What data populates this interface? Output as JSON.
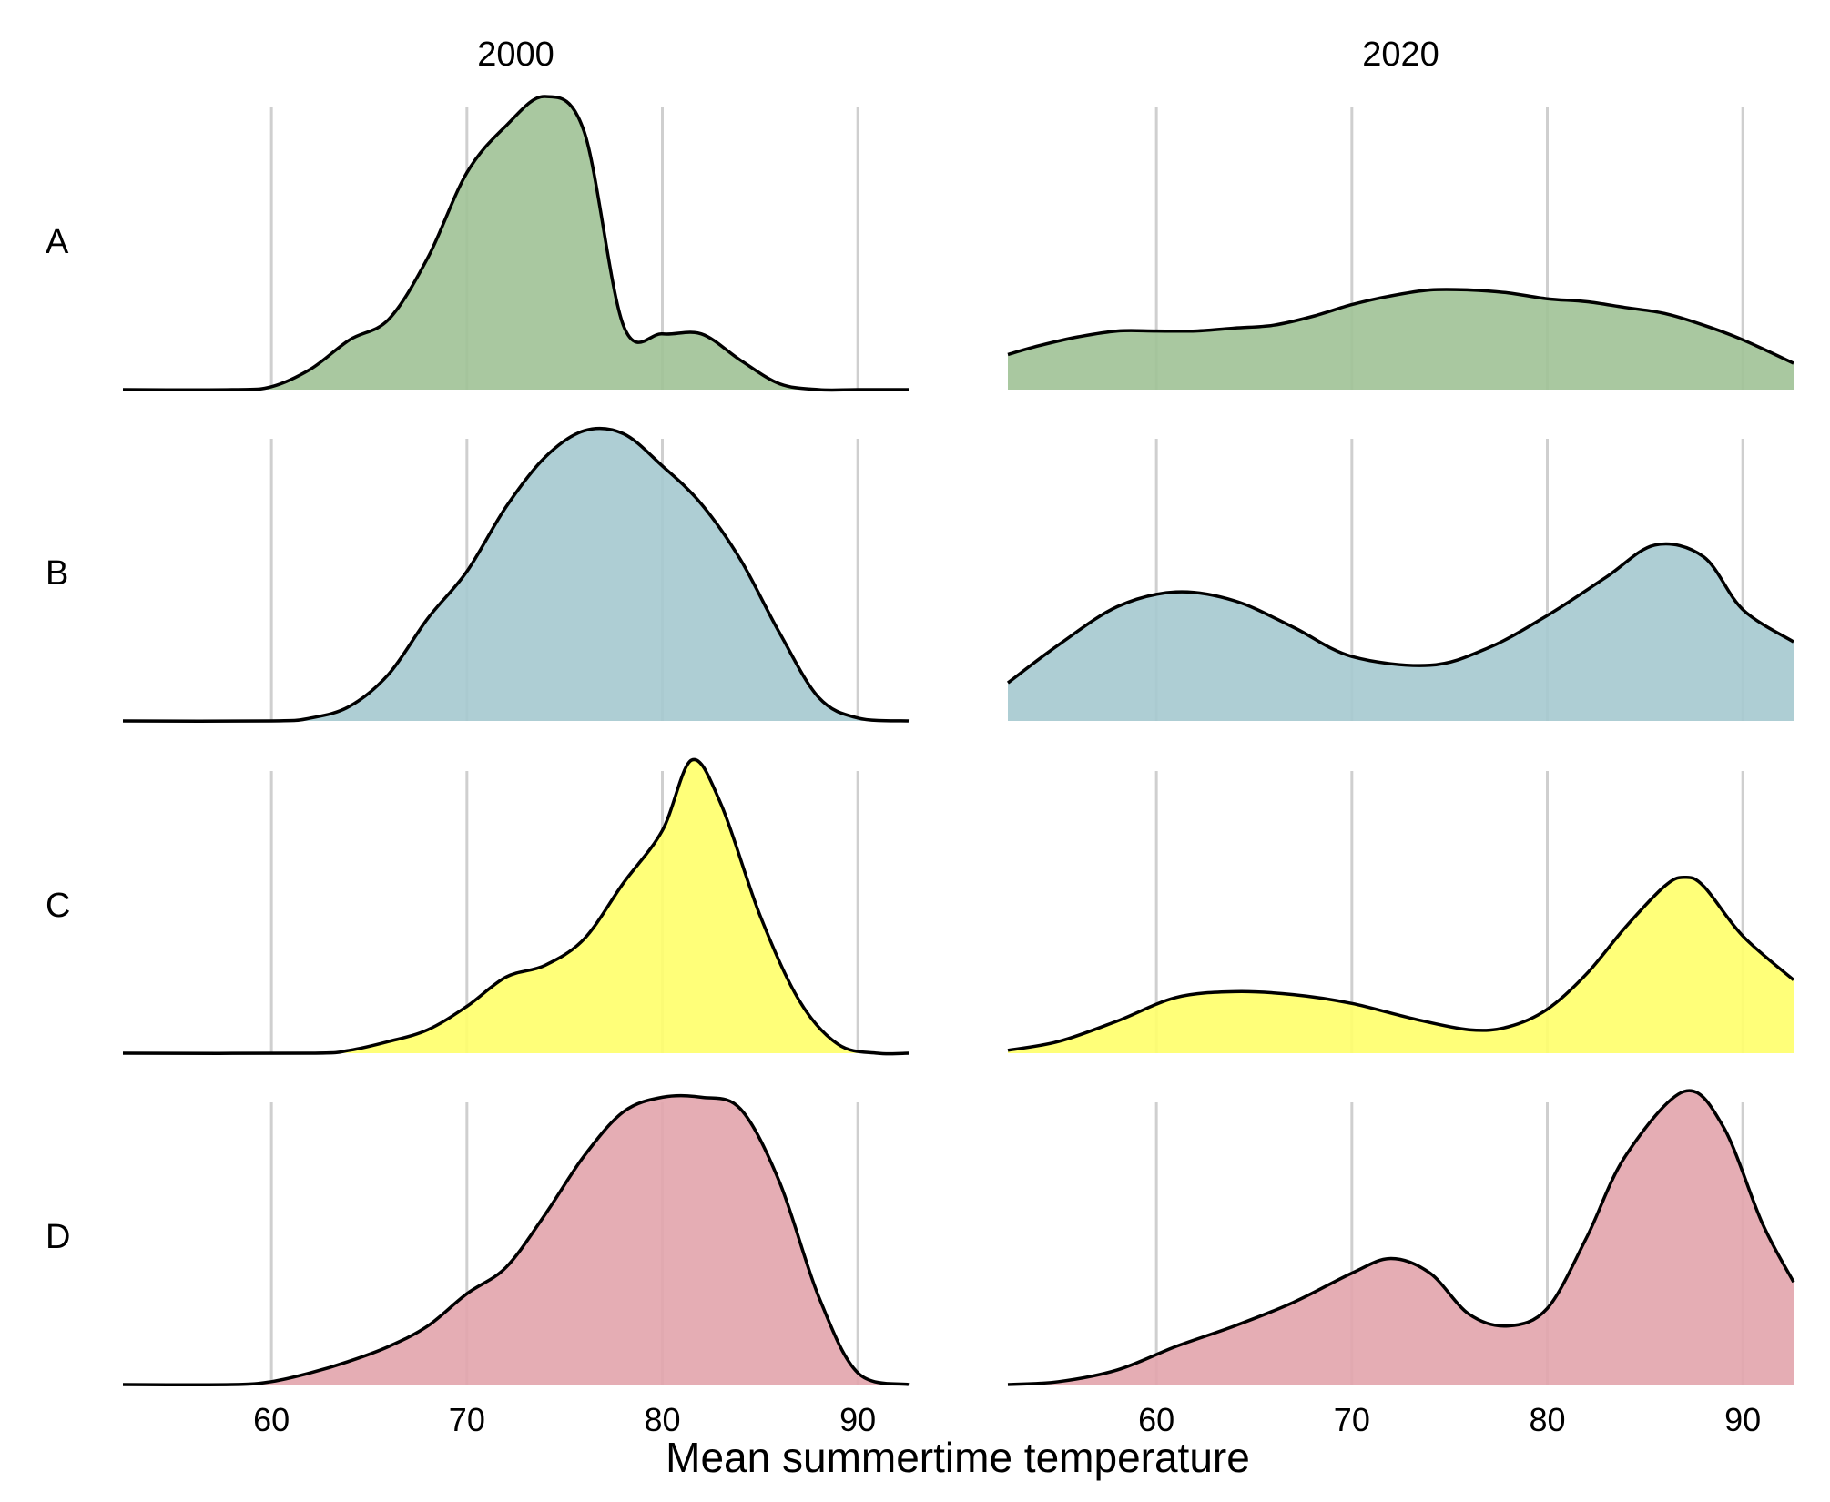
{
  "chart_data": {
    "type": "area",
    "xlabel": "Mean summertime temperature",
    "ylabel": "",
    "xticks": [
      60,
      70,
      80,
      90
    ],
    "xlim": [
      52.4,
      92.6
    ],
    "grid": "vertical",
    "columns": [
      {
        "title": "2000"
      },
      {
        "title": "2020"
      }
    ],
    "rows": [
      {
        "label": "A",
        "color": "#a2c398"
      },
      {
        "label": "B",
        "color": "#a7cad0"
      },
      {
        "label": "C",
        "color": "#ffff6e"
      },
      {
        "label": "D",
        "color": "#e3a6ae"
      }
    ],
    "panels": [
      {
        "row": "A",
        "column": "2000",
        "x": [
          52.4,
          58,
          60,
          62,
          64,
          66,
          68,
          70,
          72,
          74,
          76,
          78,
          80,
          82,
          84,
          86,
          88,
          90,
          92.6
        ],
        "density": [
          0.0,
          0.0,
          0.01,
          0.07,
          0.17,
          0.24,
          0.45,
          0.74,
          0.9,
          1.0,
          0.88,
          0.22,
          0.19,
          0.19,
          0.1,
          0.02,
          0.0,
          0.0,
          0.0
        ]
      },
      {
        "row": "A",
        "column": "2020",
        "x": [
          52.4,
          54,
          56,
          58,
          60,
          62,
          64,
          66,
          68,
          70,
          72,
          74,
          76,
          78,
          80,
          82,
          84,
          86,
          88,
          90,
          92.6
        ],
        "density": [
          0.12,
          0.15,
          0.18,
          0.2,
          0.2,
          0.2,
          0.21,
          0.22,
          0.25,
          0.29,
          0.32,
          0.34,
          0.34,
          0.33,
          0.31,
          0.3,
          0.28,
          0.26,
          0.22,
          0.17,
          0.09
        ]
      },
      {
        "row": "B",
        "column": "2000",
        "x": [
          52.4,
          60,
          62,
          64,
          66,
          68,
          70,
          72,
          74,
          76,
          78,
          80,
          82,
          84,
          86,
          88,
          90,
          92.6
        ],
        "density": [
          0.0,
          0.0,
          0.01,
          0.05,
          0.16,
          0.35,
          0.51,
          0.73,
          0.9,
          0.99,
          0.98,
          0.87,
          0.74,
          0.55,
          0.3,
          0.08,
          0.01,
          0.0
        ]
      },
      {
        "row": "B",
        "column": "2020",
        "x": [
          52.4,
          55,
          58,
          61,
          64,
          67,
          70,
          74,
          77,
          80,
          83,
          85.5,
          88,
          90,
          92.6
        ],
        "density": [
          0.13,
          0.26,
          0.39,
          0.44,
          0.41,
          0.32,
          0.22,
          0.19,
          0.25,
          0.36,
          0.49,
          0.6,
          0.56,
          0.38,
          0.27
        ]
      },
      {
        "row": "C",
        "column": "2000",
        "x": [
          52.4,
          62,
          64,
          66,
          68,
          70,
          72,
          74,
          76,
          78,
          80,
          81.5,
          83,
          85,
          87,
          89,
          91,
          92.6
        ],
        "density": [
          0.0,
          0.0,
          0.01,
          0.04,
          0.08,
          0.16,
          0.26,
          0.3,
          0.39,
          0.58,
          0.76,
          1.0,
          0.85,
          0.47,
          0.18,
          0.03,
          0.0,
          0.0
        ]
      },
      {
        "row": "C",
        "column": "2020",
        "x": [
          52.4,
          55,
          58,
          61,
          64,
          67,
          70,
          73,
          76,
          78,
          80,
          82,
          84,
          86,
          87,
          88,
          90,
          92.6
        ],
        "density": [
          0.01,
          0.04,
          0.11,
          0.19,
          0.21,
          0.2,
          0.17,
          0.12,
          0.08,
          0.09,
          0.15,
          0.27,
          0.43,
          0.57,
          0.6,
          0.57,
          0.4,
          0.25
        ]
      },
      {
        "row": "D",
        "column": "2000",
        "x": [
          52.4,
          58,
          60,
          62,
          64,
          66,
          68,
          70,
          72,
          74,
          76,
          78,
          80,
          82,
          84,
          86,
          88,
          90,
          92.6
        ],
        "density": [
          0.0,
          0.0,
          0.01,
          0.04,
          0.08,
          0.13,
          0.2,
          0.31,
          0.4,
          0.58,
          0.78,
          0.93,
          0.98,
          0.98,
          0.94,
          0.69,
          0.3,
          0.04,
          0.0
        ]
      },
      {
        "row": "D",
        "column": "2020",
        "x": [
          52.4,
          55,
          58,
          61,
          64,
          67,
          70,
          72,
          74,
          76,
          78,
          80,
          82,
          84,
          87,
          89,
          91,
          92.6
        ],
        "density": [
          0.0,
          0.01,
          0.05,
          0.13,
          0.2,
          0.28,
          0.38,
          0.43,
          0.38,
          0.24,
          0.2,
          0.26,
          0.5,
          0.78,
          1.0,
          0.88,
          0.55,
          0.35
        ]
      }
    ]
  }
}
